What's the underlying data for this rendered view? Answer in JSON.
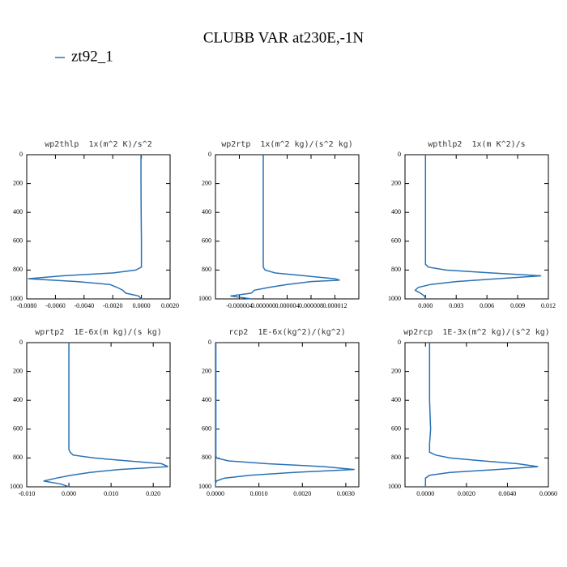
{
  "title": "CLUBB VAR at230E,-1N",
  "legend": {
    "name": "zt92_1",
    "color": "#2a72b5"
  },
  "chart_data": [
    {
      "type": "line",
      "title": "wp2thlp  1x(m^2 K)/s^2",
      "color": "#2a72b5",
      "levels": [
        0,
        200,
        400,
        600,
        700,
        760,
        780,
        800,
        820,
        840,
        860,
        880,
        900,
        920,
        940,
        960,
        980,
        1000
      ],
      "values": [
        -3e-05,
        -3e-05,
        -2e-05,
        0,
        0,
        0,
        0,
        -0.0004,
        -0.002,
        -0.0055,
        -0.0079,
        -0.0045,
        -0.0022,
        -0.0017,
        -0.0013,
        -0.0011,
        -0.0002,
        0
      ],
      "xlim": [
        -0.008,
        0.002
      ],
      "xticks": [
        {
          "value": -0.008,
          "label": "-0.0080"
        },
        {
          "value": -0.006,
          "label": "-0.0060"
        },
        {
          "value": -0.004,
          "label": "-0.0040"
        },
        {
          "value": -0.002,
          "label": "-0.0020"
        },
        {
          "value": 0,
          "label": "0.0000"
        },
        {
          "value": 0.002,
          "label": "0.0020"
        }
      ],
      "ylim": [
        1000,
        0
      ],
      "yticks": [
        0,
        200,
        400,
        600,
        800,
        1000
      ]
    },
    {
      "type": "line",
      "title": "wp2rtp  1x(m^2 kg)/(s^2 kg)",
      "color": "#2a72b5",
      "levels": [
        0,
        200,
        400,
        600,
        700,
        760,
        780,
        800,
        820,
        840,
        860,
        870,
        880,
        900,
        920,
        940,
        960,
        980,
        1000
      ],
      "values": [
        0,
        0,
        0,
        0,
        0,
        0,
        0,
        3e-07,
        2e-06,
        7e-06,
        1.2e-05,
        1.28e-05,
        8e-06,
        4e-06,
        1e-06,
        -1.5e-06,
        -2e-06,
        -5.5e-06,
        -2e-06
      ],
      "xlim": [
        -8e-06,
        1.6e-05
      ],
      "xticks": [
        {
          "value": -4e-06,
          "label": "-0.000004"
        },
        {
          "value": 0,
          "label": "0.000000"
        },
        {
          "value": 4e-06,
          "label": "0.000004"
        },
        {
          "value": 8e-06,
          "label": "0.000008"
        },
        {
          "value": 1.2e-05,
          "label": "0.000012"
        }
      ],
      "ylim": [
        1000,
        0
      ],
      "yticks": [
        0,
        200,
        400,
        600,
        800,
        1000
      ]
    },
    {
      "type": "line",
      "title": "wpthlp2  1x(m K^2)/s",
      "color": "#2a72b5",
      "levels": [
        0,
        200,
        400,
        600,
        700,
        760,
        780,
        800,
        820,
        840,
        860,
        880,
        900,
        920,
        940,
        960,
        980,
        1000
      ],
      "values": [
        0,
        0,
        0,
        0,
        0,
        0,
        0.0003,
        0.002,
        0.0065,
        0.0113,
        0.007,
        0.003,
        0.0005,
        -0.0007,
        -0.001,
        -0.0005,
        -0.0001,
        0
      ],
      "xlim": [
        -0.002,
        0.012
      ],
      "xticks": [
        {
          "value": 0,
          "label": "0.000"
        },
        {
          "value": 0.003,
          "label": "0.003"
        },
        {
          "value": 0.006,
          "label": "0.006"
        },
        {
          "value": 0.009,
          "label": "0.009"
        },
        {
          "value": 0.012,
          "label": "0.012"
        }
      ],
      "ylim": [
        1000,
        0
      ],
      "yticks": [
        0,
        200,
        400,
        600,
        800,
        1000
      ]
    },
    {
      "type": "line",
      "title": "wprtp2  1E-6x(m kg)/(s kg)",
      "color": "#2a72b5",
      "levels": [
        0,
        200,
        400,
        600,
        700,
        740,
        760,
        780,
        800,
        820,
        840,
        860,
        880,
        900,
        920,
        940,
        960,
        980,
        1000
      ],
      "values": [
        0,
        0,
        0,
        0,
        0,
        0,
        0.0003,
        0.001,
        0.006,
        0.014,
        0.022,
        0.0235,
        0.012,
        0.005,
        0.0005,
        -0.003,
        -0.006,
        -0.002,
        0
      ],
      "xlim": [
        -0.01,
        0.024
      ],
      "xticks": [
        {
          "value": -0.01,
          "label": "-0.010"
        },
        {
          "value": 0,
          "label": "0.000"
        },
        {
          "value": 0.01,
          "label": "0.010"
        },
        {
          "value": 0.02,
          "label": "0.020"
        }
      ],
      "ylim": [
        1000,
        0
      ],
      "yticks": [
        0,
        200,
        400,
        600,
        800,
        1000
      ]
    },
    {
      "type": "line",
      "title": "rcp2  1E-6x(kg^2)/(kg^2)",
      "color": "#2a72b5",
      "levels": [
        0,
        200,
        400,
        600,
        700,
        780,
        800,
        820,
        840,
        860,
        880,
        900,
        920,
        940,
        960,
        980,
        1000
      ],
      "values": [
        1e-05,
        1e-05,
        1e-05,
        1e-05,
        1e-05,
        1e-05,
        2e-05,
        0.0003,
        0.0012,
        0.0025,
        0.0032,
        0.0018,
        0.0008,
        0.0002,
        2e-05,
        0,
        0
      ],
      "xlim": [
        0,
        0.0033
      ],
      "xticks": [
        {
          "value": 0,
          "label": "0.0000"
        },
        {
          "value": 0.001,
          "label": "0.0010"
        },
        {
          "value": 0.002,
          "label": "0.0020"
        },
        {
          "value": 0.003,
          "label": "0.0030"
        }
      ],
      "ylim": [
        1000,
        0
      ],
      "yticks": [
        0,
        200,
        400,
        600,
        800,
        1000
      ]
    },
    {
      "type": "line",
      "title": "wp2rcp  1E-3x(m^2 kg)/(s^2 kg)",
      "color": "#2a72b5",
      "levels": [
        0,
        200,
        400,
        600,
        700,
        760,
        780,
        800,
        820,
        840,
        860,
        880,
        900,
        920,
        940,
        960,
        980,
        1000
      ],
      "values": [
        0.0002,
        0.0002,
        0.0002,
        0.00025,
        0.0002,
        0.0002,
        0.0005,
        0.0012,
        0.0028,
        0.0045,
        0.0055,
        0.0035,
        0.0012,
        0.0002,
        0,
        0,
        0,
        0
      ],
      "xlim": [
        -0.001,
        0.006
      ],
      "xticks": [
        {
          "value": 0,
          "label": "0.0000"
        },
        {
          "value": 0.002,
          "label": "0.0020"
        },
        {
          "value": 0.004,
          "label": "0.0040"
        },
        {
          "value": 0.006,
          "label": "0.0060"
        }
      ],
      "ylim": [
        1000,
        0
      ],
      "yticks": [
        0,
        200,
        400,
        600,
        800,
        1000
      ]
    }
  ]
}
